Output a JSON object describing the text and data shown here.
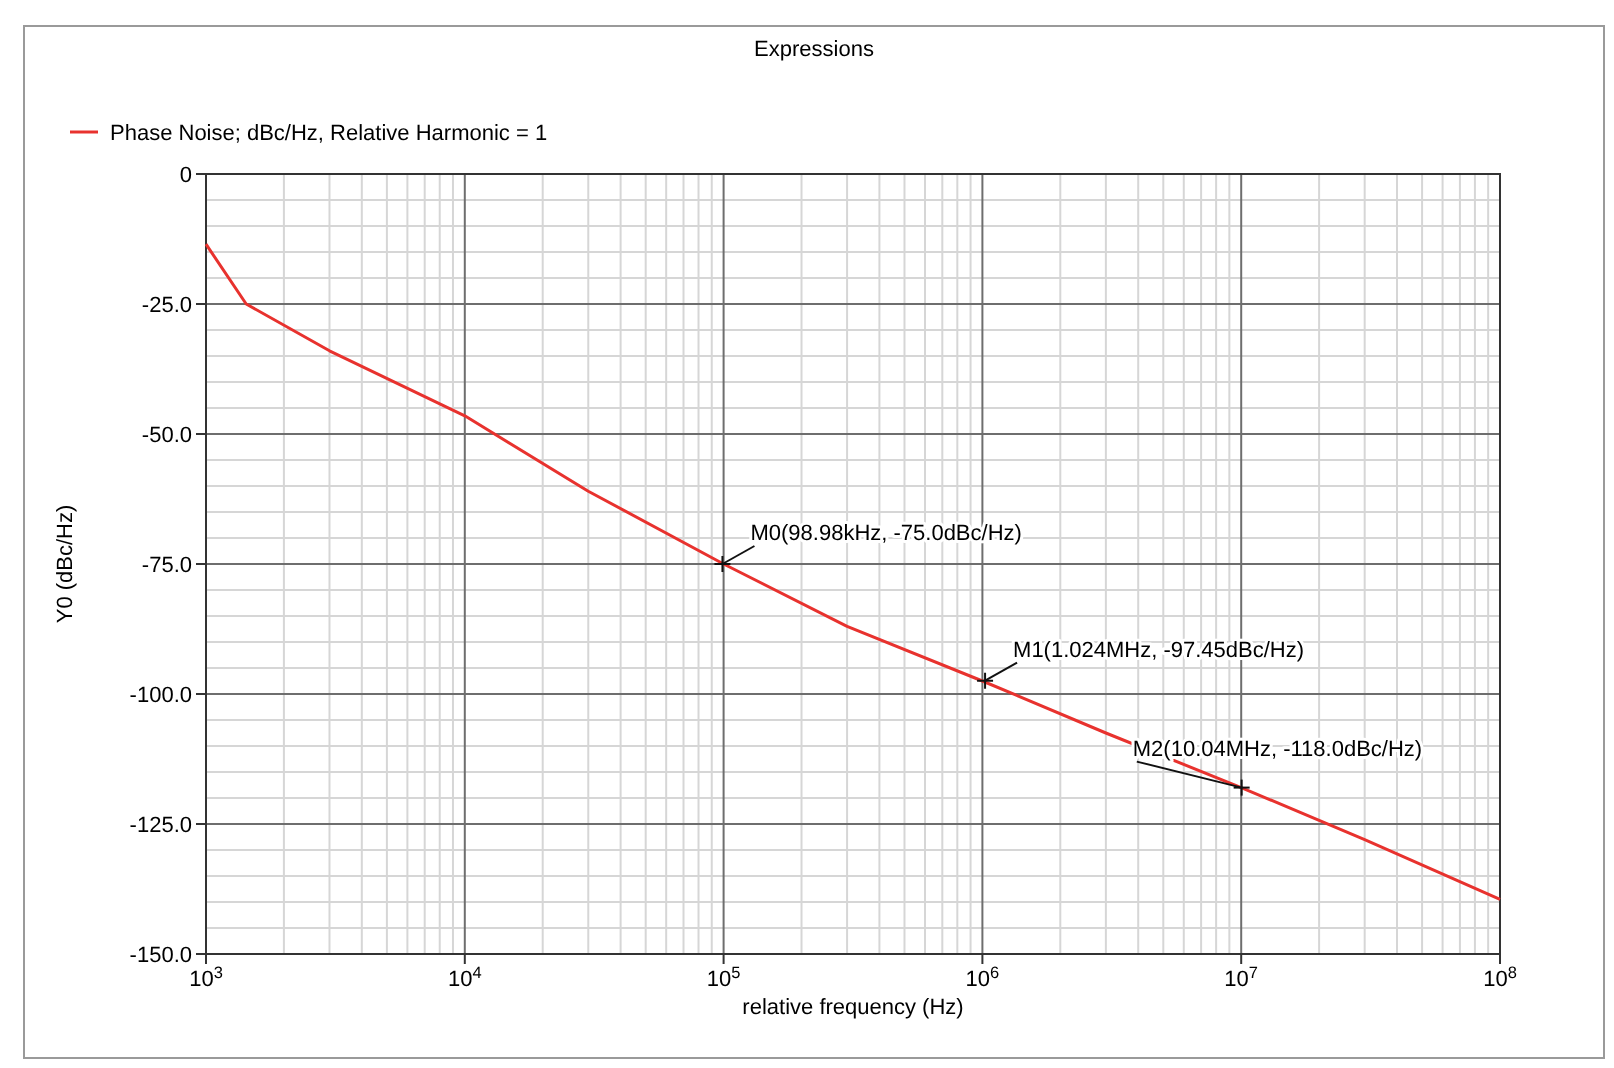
{
  "chart_data": {
    "type": "line",
    "title": "Expressions",
    "xlabel": "relative frequency (Hz)",
    "ylabel": "Y0 (dBc/Hz)",
    "log": "x",
    "x": [
      1000,
      1430,
      3000,
      10000,
      30000,
      100000,
      300000,
      1000000,
      3000000,
      10000000,
      30000000,
      100000000
    ],
    "series": [
      {
        "name": "Phase Noise; dBc/Hz, Relative Harmonic = 1",
        "color": "#e8322e",
        "values": [
          -13.5,
          -25,
          -34,
          -46.5,
          -61,
          -75,
          -87,
          -97.5,
          -107.5,
          -118,
          -128,
          -139.5
        ]
      }
    ],
    "xlim": [
      1000,
      100000000
    ],
    "xticks": [
      {
        "value": 1000,
        "label": "10$^{3}$"
      },
      {
        "value": 10000,
        "label": "10$^{4}$"
      },
      {
        "value": 100000,
        "label": "10$^{5}$"
      },
      {
        "value": 1000000,
        "label": "10$^{6}$"
      },
      {
        "value": 10000000,
        "label": "10$^{7}$"
      },
      {
        "value": 100000000,
        "label": "10$^{8}$"
      }
    ],
    "ylim": [
      -150,
      0
    ],
    "yticks": [
      0,
      {
        "value": -25,
        "label": "-25.0"
      },
      {
        "value": -50,
        "label": "-50.0"
      },
      {
        "value": -75,
        "label": "-75.0"
      },
      {
        "value": -100,
        "label": "-100.0"
      },
      {
        "value": -125,
        "label": "-125.0"
      },
      {
        "value": -150,
        "label": "-150.0"
      }
    ],
    "annotations": [
      {
        "text": "M0(98.98kHz, -75.0dBc/Hz)",
        "x": 98980,
        "y": -75
      },
      {
        "text": "M1(1.024MHz, -97.45dBc/Hz)",
        "x": 1024000,
        "y": -97.45
      },
      {
        "text": "M2(10.04MHz, -118.0dBc/Hz)",
        "x": 10040000,
        "y": -118
      }
    ],
    "grid": true,
    "legend": "top left",
    "marker": "none",
    "line_style": "solid"
  }
}
